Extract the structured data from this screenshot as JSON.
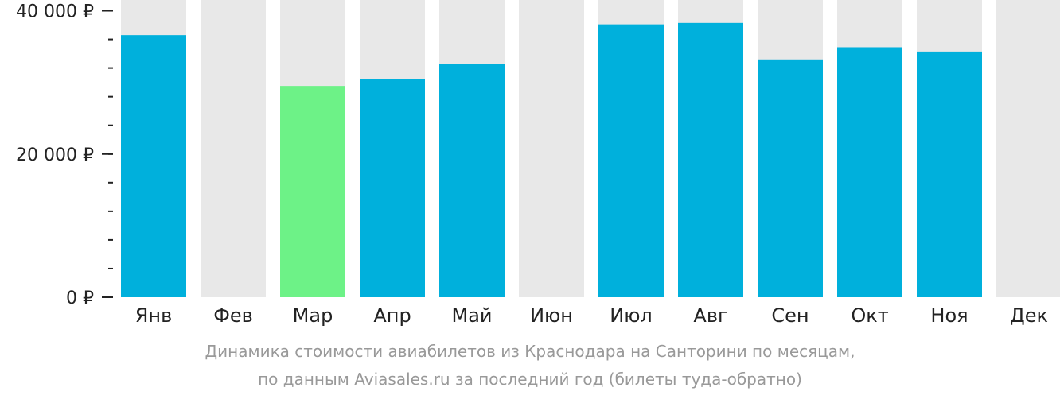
{
  "colors": {
    "bar": "#00b0dc",
    "highlight": "#6df287",
    "track": "#e8e8e8",
    "axis": "#222222"
  },
  "chart_data": {
    "type": "bar",
    "categories": [
      "Янв",
      "Фев",
      "Мар",
      "Апр",
      "Май",
      "Июн",
      "Июл",
      "Авг",
      "Сен",
      "Окт",
      "Ноя",
      "Дек"
    ],
    "values": [
      36600,
      null,
      29500,
      30500,
      32600,
      null,
      38100,
      38300,
      33200,
      34900,
      34300,
      null
    ],
    "highlight_category": "Мар",
    "ylim": [
      0,
      41500
    ],
    "y_ticks": [
      {
        "value": 0,
        "label": "0 ₽"
      },
      {
        "value": 20000,
        "label": "20 000 ₽"
      },
      {
        "value": 40000,
        "label": "40 000 ₽"
      }
    ],
    "minor_tick_step": 4000,
    "grid": false
  },
  "caption": {
    "line1": "Динамика стоимости авиабилетов из Краснодара на Санторини по месяцам,",
    "line2": "по данным Aviasales.ru за последний год (билеты туда-обратно)"
  }
}
